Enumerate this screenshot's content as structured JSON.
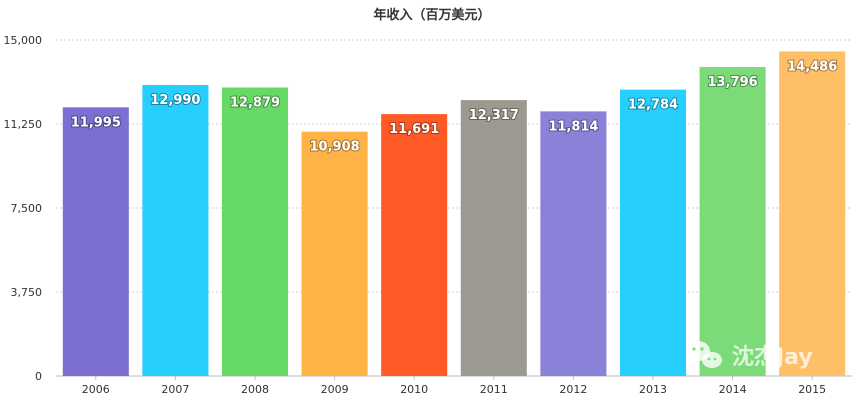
{
  "chart_data": {
    "type": "bar",
    "title": "年收入（百万美元）",
    "categories": [
      "2006",
      "2007",
      "2008",
      "2009",
      "2010",
      "2011",
      "2012",
      "2013",
      "2014",
      "2015"
    ],
    "values": [
      11995,
      12990,
      12879,
      10908,
      11691,
      12317,
      11814,
      12784,
      13796,
      14486
    ],
    "value_labels": [
      "11,995",
      "12,990",
      "12,879",
      "10,908",
      "11,691",
      "12,317",
      "11,814",
      "12,784",
      "13,796",
      "14,486"
    ],
    "colors": [
      "#7b6fd1",
      "#27cfff",
      "#66d966",
      "#ffb347",
      "#ff5a26",
      "#9c9a90",
      "#8a82d8",
      "#27cfff",
      "#7bdb78",
      "#ffbf66"
    ],
    "yticks": [
      0,
      3750,
      7500,
      11250,
      15000
    ],
    "ytick_labels": [
      "0",
      "3,750",
      "7,500",
      "11,250",
      "15,000"
    ],
    "ylim": [
      0,
      15000
    ],
    "grid": true,
    "xlabel": "",
    "ylabel": ""
  },
  "watermark": {
    "text": "沈杰Jay",
    "icon": "wechat-icon"
  }
}
